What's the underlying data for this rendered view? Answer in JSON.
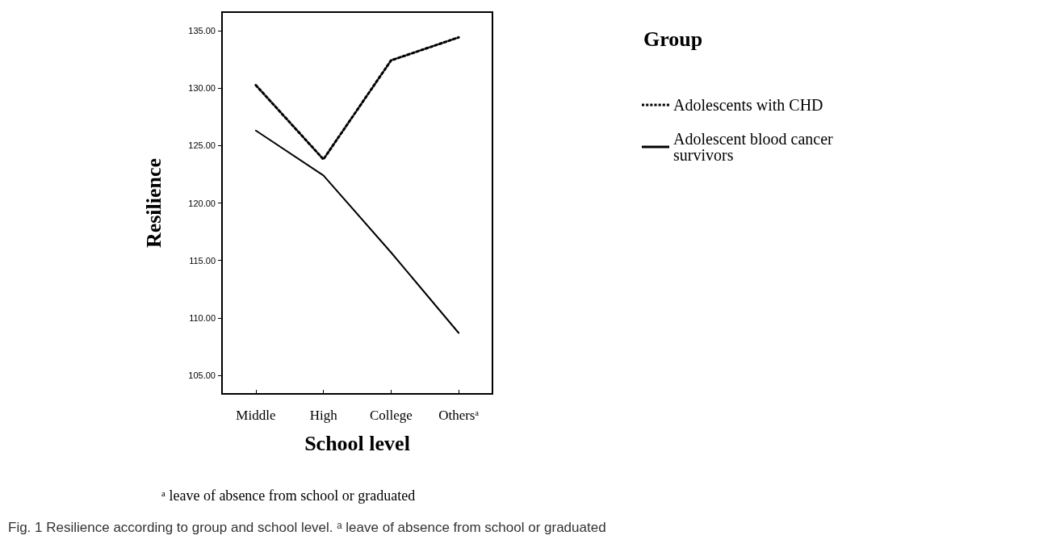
{
  "chart_data": {
    "type": "line",
    "xlabel": "School level",
    "ylabel": "Resilience",
    "legend_title": "Group",
    "categories": [
      "Middle",
      "High",
      "College",
      "Othersᵃ"
    ],
    "series": [
      {
        "name": "Adolescents with CHD",
        "color": "#000000",
        "line_style": "dotted",
        "values": [
          130.25,
          123.8,
          132.4,
          134.4
        ]
      },
      {
        "name": "Adolescent blood cancer survivors",
        "color": "#000000",
        "line_style": "solid",
        "values": [
          126.3,
          122.4,
          115.7,
          108.7
        ]
      }
    ],
    "ylim": [
      103.4,
      136.6
    ],
    "yticks": [
      {
        "value": 105,
        "label": "105.00"
      },
      {
        "value": 110,
        "label": "110.00"
      },
      {
        "value": 115,
        "label": "115.00"
      },
      {
        "value": 120,
        "label": "120.00"
      },
      {
        "value": 125,
        "label": "125.00"
      },
      {
        "value": 130,
        "label": "130.00"
      },
      {
        "value": 135,
        "label": "135.00"
      }
    ],
    "grid": false,
    "legend": "right",
    "annotations": [
      "ᵃ leave of absence from school or graduated",
      "Fig. 1 Resilience according to group and school level. ᵃ leave of absence from school or graduated"
    ]
  }
}
